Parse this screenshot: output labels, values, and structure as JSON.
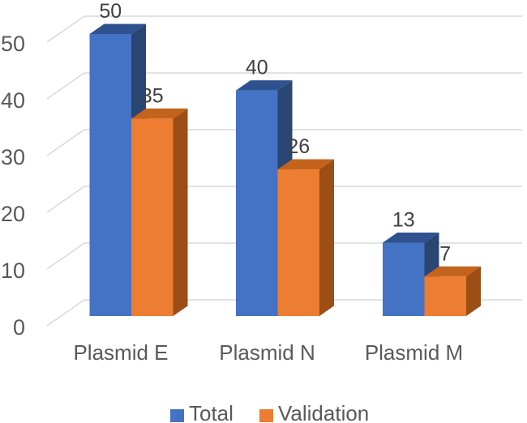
{
  "chart_data": {
    "type": "bar",
    "variant": "3d-clustered-column",
    "title": "",
    "xlabel": "",
    "ylabel": "",
    "categories": [
      "Plasmid E",
      "Plasmid N",
      "Plasmid M"
    ],
    "series": [
      {
        "name": "Total",
        "values": [
          50,
          40,
          13
        ],
        "color": "#4472C4",
        "color_top": "#30518F",
        "color_side": "#294572"
      },
      {
        "name": "Validation",
        "values": [
          35,
          26,
          7
        ],
        "color": "#ED7D31",
        "color_top": "#C4631D",
        "color_side": "#9C4E15"
      }
    ],
    "data_labels": {
      "Total": [
        "50",
        "40",
        "13"
      ],
      "Validation": [
        "35",
        "26",
        "7"
      ]
    },
    "ylim": [
      0,
      50
    ],
    "yticks": [
      0,
      10,
      20,
      30,
      40,
      50
    ],
    "grid": true,
    "legend_position": "bottom",
    "colors": {
      "axis_text": "#595959",
      "category_text": "#595959",
      "data_label_text": "#404040",
      "legend_text": "#595959",
      "gridline": "#D9D9D9",
      "background": "#FFFFFF"
    }
  }
}
